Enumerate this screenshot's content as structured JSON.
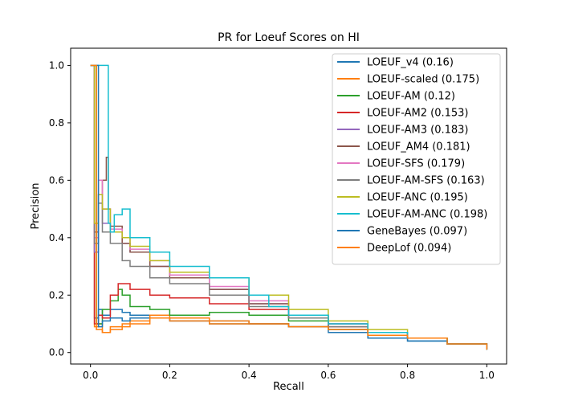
{
  "chart_data": {
    "type": "line",
    "title": "PR for Loeuf Scores on HI",
    "xlabel": "Recall",
    "ylabel": "Precision",
    "xlim": [
      -0.05,
      1.05
    ],
    "ylim": [
      -0.04,
      1.06
    ],
    "xticks": [
      0.0,
      0.2,
      0.4,
      0.6,
      0.8,
      1.0
    ],
    "xtick_labels": [
      "0.0",
      "0.2",
      "0.4",
      "0.6",
      "0.8",
      "1.0"
    ],
    "yticks": [
      0.0,
      0.2,
      0.4,
      0.6,
      0.8,
      1.0
    ],
    "ytick_labels": [
      "0.0",
      "0.2",
      "0.4",
      "0.6",
      "0.8",
      "1.0"
    ],
    "grid": false,
    "legend_position": "top-right",
    "series": [
      {
        "name": "LOEUF_v4 (0.16)",
        "color": "#1f77b4",
        "x": [
          0.0,
          0.01,
          0.01,
          0.02,
          0.03,
          0.05,
          0.08,
          0.1,
          0.15,
          0.2,
          0.3,
          0.4,
          0.5,
          0.6,
          0.7,
          0.8,
          0.9,
          1.0
        ],
        "y": [
          1.0,
          1.0,
          0.12,
          0.15,
          0.13,
          0.15,
          0.14,
          0.13,
          0.12,
          0.11,
          0.11,
          0.1,
          0.09,
          0.07,
          0.05,
          0.04,
          0.03,
          0.01
        ]
      },
      {
        "name": "LOEUF-scaled (0.175)",
        "color": "#ff7f0e",
        "x": [
          0.0,
          0.01,
          0.01,
          0.02,
          0.03,
          0.05,
          0.08,
          0.1,
          0.15,
          0.2,
          0.3,
          0.4,
          0.5,
          0.6,
          0.7,
          0.8,
          0.9,
          1.0
        ],
        "y": [
          1.0,
          1.0,
          0.09,
          0.1,
          0.07,
          0.09,
          0.1,
          0.11,
          0.13,
          0.12,
          0.11,
          0.1,
          0.09,
          0.08,
          0.06,
          0.05,
          0.03,
          0.01
        ]
      },
      {
        "name": "LOEUF-AM (0.12)",
        "color": "#2ca02c",
        "x": [
          0.0,
          0.015,
          0.015,
          0.03,
          0.05,
          0.07,
          0.08,
          0.1,
          0.15,
          0.2,
          0.3,
          0.4,
          0.5,
          0.6,
          0.7,
          0.8,
          0.9,
          1.0
        ],
        "y": [
          1.0,
          1.0,
          0.1,
          0.15,
          0.18,
          0.22,
          0.2,
          0.16,
          0.15,
          0.13,
          0.14,
          0.13,
          0.11,
          0.08,
          0.06,
          0.05,
          0.03,
          0.01
        ]
      },
      {
        "name": "LOEUF-AM2 (0.153)",
        "color": "#d62728",
        "x": [
          0.0,
          0.01,
          0.01,
          0.02,
          0.03,
          0.05,
          0.07,
          0.1,
          0.15,
          0.2,
          0.3,
          0.4,
          0.5,
          0.6,
          0.7,
          0.8,
          0.9,
          1.0
        ],
        "y": [
          1.0,
          1.0,
          0.1,
          0.13,
          0.12,
          0.2,
          0.24,
          0.22,
          0.2,
          0.19,
          0.17,
          0.15,
          0.12,
          0.09,
          0.07,
          0.05,
          0.03,
          0.01
        ]
      },
      {
        "name": "LOEUF-AM3 (0.183)",
        "color": "#9467bd",
        "x": [
          0.0,
          0.01,
          0.01,
          0.02,
          0.03,
          0.05,
          0.08,
          0.1,
          0.15,
          0.2,
          0.3,
          0.4,
          0.5,
          0.6,
          0.7,
          0.8,
          0.9,
          1.0
        ],
        "y": [
          1.0,
          1.0,
          0.35,
          0.55,
          0.45,
          0.42,
          0.38,
          0.35,
          0.3,
          0.27,
          0.22,
          0.17,
          0.13,
          0.1,
          0.07,
          0.05,
          0.03,
          0.01
        ]
      },
      {
        "name": "LOEUF_AM4 (0.181)",
        "color": "#8c564b",
        "x": [
          0.0,
          0.01,
          0.01,
          0.02,
          0.03,
          0.04,
          0.045,
          0.05,
          0.08,
          0.1,
          0.15,
          0.2,
          0.3,
          0.4,
          0.5,
          0.6,
          0.7,
          0.8,
          0.9,
          1.0
        ],
        "y": [
          1.0,
          1.0,
          0.42,
          0.55,
          0.6,
          0.68,
          0.5,
          0.44,
          0.38,
          0.35,
          0.3,
          0.26,
          0.22,
          0.17,
          0.13,
          0.1,
          0.07,
          0.05,
          0.03,
          0.01
        ]
      },
      {
        "name": "LOEUF-SFS (0.179)",
        "color": "#e377c2",
        "x": [
          0.0,
          0.01,
          0.01,
          0.02,
          0.03,
          0.05,
          0.08,
          0.1,
          0.15,
          0.2,
          0.3,
          0.4,
          0.5,
          0.6,
          0.7,
          0.8,
          0.9,
          1.0
        ],
        "y": [
          1.0,
          1.0,
          0.4,
          0.6,
          0.5,
          0.43,
          0.4,
          0.36,
          0.32,
          0.27,
          0.23,
          0.18,
          0.13,
          0.1,
          0.07,
          0.05,
          0.03,
          0.01
        ]
      },
      {
        "name": "LOEUF-AM-SFS (0.163)",
        "color": "#7f7f7f",
        "x": [
          0.0,
          0.01,
          0.01,
          0.02,
          0.03,
          0.05,
          0.08,
          0.1,
          0.15,
          0.2,
          0.3,
          0.4,
          0.5,
          0.6,
          0.7,
          0.8,
          0.9,
          1.0
        ],
        "y": [
          1.0,
          1.0,
          0.38,
          0.52,
          0.42,
          0.38,
          0.32,
          0.3,
          0.26,
          0.24,
          0.2,
          0.16,
          0.12,
          0.09,
          0.07,
          0.05,
          0.03,
          0.01
        ]
      },
      {
        "name": "LOEUF-ANC (0.195)",
        "color": "#bcbd22",
        "x": [
          0.0,
          0.01,
          0.01,
          0.02,
          0.03,
          0.05,
          0.08,
          0.1,
          0.15,
          0.2,
          0.3,
          0.4,
          0.5,
          0.6,
          0.7,
          0.8,
          0.9,
          1.0
        ],
        "y": [
          1.0,
          1.0,
          0.45,
          0.55,
          0.5,
          0.42,
          0.4,
          0.37,
          0.32,
          0.28,
          0.26,
          0.2,
          0.15,
          0.11,
          0.08,
          0.05,
          0.03,
          0.01
        ]
      },
      {
        "name": "LOEUF-AM-ANC (0.198)",
        "color": "#17becf",
        "x": [
          0.0,
          0.01,
          0.01,
          0.02,
          0.04,
          0.045,
          0.05,
          0.06,
          0.08,
          0.1,
          0.15,
          0.2,
          0.3,
          0.4,
          0.45,
          0.5,
          0.6,
          0.7,
          0.8,
          0.9,
          1.0
        ],
        "y": [
          1.0,
          1.0,
          1.0,
          1.0,
          1.0,
          0.45,
          0.42,
          0.48,
          0.5,
          0.4,
          0.35,
          0.3,
          0.26,
          0.2,
          0.16,
          0.13,
          0.1,
          0.07,
          0.05,
          0.03,
          0.01
        ]
      },
      {
        "name": "GeneBayes (0.097)",
        "color": "#1f77b4",
        "x": [
          0.0,
          0.02,
          0.02,
          0.03,
          0.05,
          0.08,
          0.1,
          0.15,
          0.2,
          0.3,
          0.4,
          0.5,
          0.6,
          0.7,
          0.8,
          0.9,
          1.0
        ],
        "y": [
          1.0,
          1.0,
          0.09,
          0.11,
          0.12,
          0.11,
          0.12,
          0.12,
          0.11,
          0.1,
          0.1,
          0.09,
          0.08,
          0.06,
          0.04,
          0.03,
          0.01
        ]
      },
      {
        "name": "DeepLof (0.094)",
        "color": "#ff7f0e",
        "x": [
          0.0,
          0.015,
          0.015,
          0.03,
          0.05,
          0.08,
          0.1,
          0.15,
          0.2,
          0.3,
          0.4,
          0.5,
          0.6,
          0.7,
          0.8,
          0.9,
          1.0
        ],
        "y": [
          1.0,
          1.0,
          0.08,
          0.07,
          0.08,
          0.09,
          0.1,
          0.12,
          0.11,
          0.1,
          0.1,
          0.09,
          0.08,
          0.06,
          0.05,
          0.03,
          0.01
        ]
      }
    ]
  }
}
